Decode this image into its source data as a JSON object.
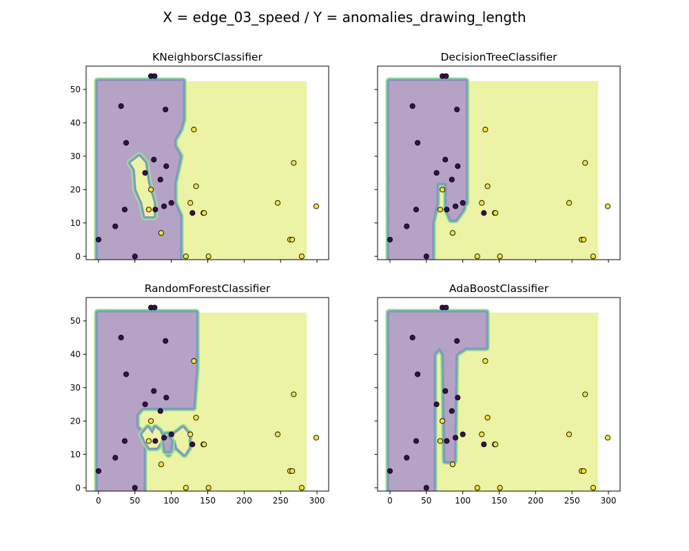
{
  "figure": {
    "title": "X = edge_03_speed / Y = anomalies_drawing_length"
  },
  "style": {
    "class0_region": "#b4a3c5",
    "class1_region": "#ecf3a5",
    "boundary_colors": [
      "#9c8fbd",
      "#7e93be",
      "#6aaabb",
      "#6cc2ad",
      "#8fd49c",
      "#bfe48d"
    ],
    "class0_point": "#3b0f4f",
    "class1_point": "#f5e13a",
    "point_edge": "#000000"
  },
  "points": [
    {
      "x": 0,
      "y": 5,
      "label": 0
    },
    {
      "x": 23,
      "y": 9,
      "label": 0
    },
    {
      "x": 31,
      "y": 45,
      "label": 0
    },
    {
      "x": 36,
      "y": 14,
      "label": 0
    },
    {
      "x": 38,
      "y": 34,
      "label": 0
    },
    {
      "x": 50,
      "y": 0,
      "label": 0
    },
    {
      "x": 64,
      "y": 25,
      "label": 0
    },
    {
      "x": 72,
      "y": 54,
      "label": 0
    },
    {
      "x": 77,
      "y": 54,
      "label": 0
    },
    {
      "x": 76,
      "y": 29,
      "label": 0
    },
    {
      "x": 78,
      "y": 14,
      "label": 0
    },
    {
      "x": 85,
      "y": 23,
      "label": 0
    },
    {
      "x": 90,
      "y": 15,
      "label": 0
    },
    {
      "x": 92,
      "y": 44,
      "label": 0
    },
    {
      "x": 93,
      "y": 27,
      "label": 0
    },
    {
      "x": 100,
      "y": 16,
      "label": 0
    },
    {
      "x": 129,
      "y": 13,
      "label": 0
    },
    {
      "x": 69,
      "y": 14,
      "label": 1
    },
    {
      "x": 72,
      "y": 20,
      "label": 1
    },
    {
      "x": 86,
      "y": 7,
      "label": 1
    },
    {
      "x": 120,
      "y": 0,
      "label": 1
    },
    {
      "x": 126,
      "y": 16,
      "label": 1
    },
    {
      "x": 131,
      "y": 38,
      "label": 1
    },
    {
      "x": 134,
      "y": 21,
      "label": 1
    },
    {
      "x": 144,
      "y": 13,
      "label": 1
    },
    {
      "x": 145,
      "y": 13,
      "label": 1
    },
    {
      "x": 151,
      "y": 0,
      "label": 1
    },
    {
      "x": 246,
      "y": 16,
      "label": 1
    },
    {
      "x": 263,
      "y": 5,
      "label": 1
    },
    {
      "x": 266,
      "y": 5,
      "label": 1
    },
    {
      "x": 268,
      "y": 28,
      "label": 1
    },
    {
      "x": 279,
      "y": 0,
      "label": 1
    },
    {
      "x": 299,
      "y": 15,
      "label": 1
    }
  ],
  "chart_data": [
    {
      "type": "scatter",
      "title": "KNeighborsClassifier",
      "xlim": [
        -17,
        316
      ],
      "ylim": [
        -1,
        57
      ],
      "xticks": [
        0,
        50,
        100,
        150,
        200,
        250,
        300
      ],
      "yticks": [
        0,
        10,
        20,
        30,
        40,
        50
      ],
      "show_xticklabels": false,
      "show_yticklabels": true,
      "grid": false,
      "decision_region": {
        "x_range": [
          -1,
          286
        ],
        "y_range": [
          -1,
          52.5
        ],
        "class0_polygon": [
          [
            -1,
            -1
          ],
          [
            112,
            -1
          ],
          [
            112,
            12
          ],
          [
            104,
            16
          ],
          [
            104,
            22
          ],
          [
            112,
            30
          ],
          [
            104,
            33
          ],
          [
            104,
            35
          ],
          [
            112,
            38
          ],
          [
            116,
            41
          ],
          [
            116,
            52.5
          ],
          [
            -1,
            52.5
          ],
          [
            -1,
            30
          ],
          [
            -1,
            5
          ],
          [
            -1,
            -1
          ]
        ],
        "class1_islands": [
          [
            [
              44,
              28
            ],
            [
              56,
              30
            ],
            [
              64,
              28
            ],
            [
              68,
              22
            ],
            [
              76,
              16
            ],
            [
              76,
              12
            ],
            [
              64,
              12
            ],
            [
              60,
              16
            ],
            [
              52,
              20
            ],
            [
              50,
              26
            ]
          ]
        ],
        "class0_islands": []
      }
    },
    {
      "type": "scatter",
      "title": "DecisionTreeClassifier",
      "xlim": [
        -17,
        316
      ],
      "ylim": [
        -1,
        57
      ],
      "xticks": [
        0,
        50,
        100,
        150,
        200,
        250,
        300
      ],
      "yticks": [
        0,
        10,
        20,
        30,
        40,
        50
      ],
      "show_xticklabels": false,
      "show_yticklabels": false,
      "grid": false,
      "decision_region": {
        "x_range": [
          -1,
          286
        ],
        "y_range": [
          -1,
          52.5
        ],
        "class0_polygon": [
          [
            -1,
            -1
          ],
          [
            58,
            -1
          ],
          [
            58,
            10
          ],
          [
            64,
            16
          ],
          [
            64,
            22
          ],
          [
            78,
            22
          ],
          [
            78,
            14
          ],
          [
            84,
            11
          ],
          [
            90,
            11
          ],
          [
            100,
            14
          ],
          [
            102,
            16
          ],
          [
            104,
            16
          ],
          [
            104,
            52.5
          ],
          [
            -1,
            52.5
          ]
        ],
        "class1_islands": [],
        "class0_islands": []
      }
    },
    {
      "type": "scatter",
      "title": "RandomForestClassifier",
      "xlim": [
        -17,
        316
      ],
      "ylim": [
        -1,
        57
      ],
      "xticks": [
        0,
        50,
        100,
        150,
        200,
        250,
        300
      ],
      "yticks": [
        0,
        10,
        20,
        30,
        40,
        50
      ],
      "show_xticklabels": true,
      "show_yticklabels": true,
      "grid": false,
      "decision_region": {
        "x_range": [
          -1,
          286
        ],
        "y_range": [
          -1,
          52.5
        ],
        "class0_polygon": [
          [
            -1,
            -1
          ],
          [
            62,
            -1
          ],
          [
            62,
            12
          ],
          [
            64,
            16
          ],
          [
            52,
            18
          ],
          [
            52,
            22
          ],
          [
            60,
            24
          ],
          [
            130,
            24
          ],
          [
            132,
            30
          ],
          [
            134,
            36
          ],
          [
            134,
            52.5
          ],
          [
            -1,
            52.5
          ]
        ],
        "class1_islands": [
          [
            [
              60,
              16
            ],
            [
              68,
              18
            ],
            [
              74,
              16
            ],
            [
              78,
              18
            ],
            [
              84,
              17
            ],
            [
              88,
              15
            ],
            [
              90,
              12
            ],
            [
              96,
              10
            ],
            [
              102,
              12
            ],
            [
              104,
              16
            ],
            [
              116,
              18
            ],
            [
              124,
              16
            ],
            [
              124,
              12
            ],
            [
              118,
              10
            ],
            [
              108,
              12
            ],
            [
              106,
              14
            ],
            [
              100,
              16
            ],
            [
              92,
              16
            ],
            [
              86,
              14
            ],
            [
              80,
              12
            ],
            [
              70,
              12
            ],
            [
              64,
              14
            ]
          ]
        ],
        "class0_islands": [
          [
            [
              92,
              11
            ],
            [
              98,
              11
            ],
            [
              100,
              14
            ],
            [
              96,
              15
            ],
            [
              90,
              14
            ]
          ]
        ]
      }
    },
    {
      "type": "scatter",
      "title": "AdaBoostClassifier",
      "xlim": [
        -17,
        316
      ],
      "ylim": [
        -1,
        57
      ],
      "xticks": [
        0,
        50,
        100,
        150,
        200,
        250,
        300
      ],
      "yticks": [
        0,
        10,
        20,
        30,
        40,
        50
      ],
      "show_xticklabels": true,
      "show_yticklabels": false,
      "grid": false,
      "decision_region": {
        "x_range": [
          -1,
          286
        ],
        "y_range": [
          -1,
          52.5
        ],
        "class0_polygon": [
          [
            -1,
            -1
          ],
          [
            60,
            -1
          ],
          [
            60,
            40
          ],
          [
            68,
            42
          ],
          [
            74,
            40
          ],
          [
            76,
            8
          ],
          [
            88,
            8
          ],
          [
            90,
            40
          ],
          [
            104,
            42
          ],
          [
            132,
            42
          ],
          [
            132,
            52.5
          ],
          [
            -1,
            52.5
          ]
        ],
        "class1_islands": [],
        "class0_islands": []
      }
    }
  ]
}
